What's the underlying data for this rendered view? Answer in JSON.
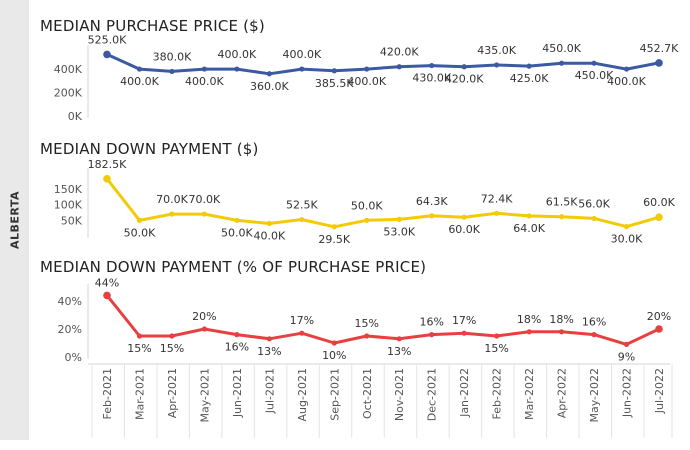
{
  "side_label": "ALBERTA",
  "x_categories": [
    "Feb-2021",
    "Mar-2021",
    "Apr-2021",
    "May-2021",
    "Jun-2021",
    "Jul-2021",
    "Aug-2021",
    "Sep-2021",
    "Oct-2021",
    "Nov-2021",
    "Dec-2021",
    "Jan-2022",
    "Feb-2022",
    "Mar-2022",
    "Apr-2022",
    "May-2022",
    "Jun-2022",
    "Jul-2022"
  ],
  "chart_data": [
    {
      "type": "line",
      "title": "MEDIAN PURCHASE PRICE ($)",
      "color": "#3b5aa2",
      "y_ticks": [
        "0K",
        "200K",
        "400K"
      ],
      "ylim": [
        0,
        520
      ],
      "values": [
        525,
        400,
        380,
        400,
        400,
        360,
        400,
        385.5,
        400,
        420,
        430,
        420,
        435,
        425,
        450,
        450,
        400,
        452.7
      ],
      "labels": [
        "525.0K",
        "400.0K",
        "380.0K",
        "400.0K",
        "400.0K",
        "360.0K",
        "400.0K",
        "385.5K",
        "400.0K",
        "420.0K",
        "430.0K",
        "420.0K",
        "435.0K",
        "425.0K",
        "450.0K",
        "450.0K",
        "400.0K",
        "452.7K"
      ]
    },
    {
      "type": "line",
      "title": "MEDIAN DOWN PAYMENT ($)",
      "color": "#f2cb05",
      "y_ticks": [
        "50K",
        "100K",
        "150K"
      ],
      "ylim": [
        0,
        185
      ],
      "values": [
        182.5,
        50,
        70,
        70,
        50,
        40,
        52.5,
        29.5,
        50,
        53,
        64.3,
        60,
        72.4,
        64,
        61.5,
        56,
        30,
        60
      ],
      "labels": [
        "182.5K",
        "50.0K",
        "70.0K",
        "70.0K",
        "50.0K",
        "40.0K",
        "52.5K",
        "29.5K",
        "50.0K",
        "53.0K",
        "64.3K",
        "60.0K",
        "72.4K",
        "64.0K",
        "61.5K",
        "56.0K",
        "30.0K",
        "60.0K"
      ]
    },
    {
      "type": "line",
      "title": "MEDIAN DOWN PAYMENT (% OF PURCHASE PRICE)",
      "color": "#e84040",
      "y_ticks": [
        "0%",
        "20%",
        "40%"
      ],
      "ylim": [
        0,
        45
      ],
      "values": [
        44,
        15,
        15,
        20,
        16,
        13,
        17,
        10,
        15,
        13,
        16,
        17,
        15,
        18,
        18,
        16,
        9,
        20
      ],
      "labels": [
        "44%",
        "15%",
        "15%",
        "20%",
        "16%",
        "13%",
        "17%",
        "10%",
        "15%",
        "13%",
        "16%",
        "17%",
        "15%",
        "18%",
        "18%",
        "16%",
        "9%",
        "20%"
      ]
    }
  ]
}
